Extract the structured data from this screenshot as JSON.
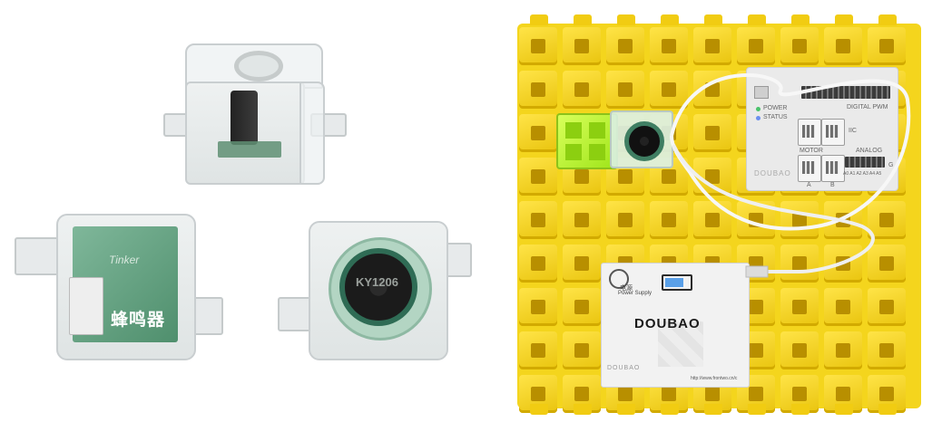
{
  "left_panel": {
    "front_module_label": "蜂鸣器",
    "pcb_brand_text": "Tinker",
    "buzzer_marking": "KY1206"
  },
  "right_panel": {
    "controller": {
      "power_led_label": "POWER",
      "status_led_label": "STATUS",
      "digital_label": "DIGITAL PWM",
      "iic_label": "IIC",
      "motor_label": "MOTOR",
      "motor_a": "A",
      "motor_b": "B",
      "analog_label": "ANALOG",
      "analog_pins": "A0 A1 A2 A3 A4 A5",
      "g_label": "G",
      "board_brand": "DOUBAO"
    },
    "power_box": {
      "cn_label": "电源",
      "power_supply_label": "Power Supply",
      "brand": "DOUBAO",
      "footer_brand": "DOUBAO",
      "url": "http://www.frontwo.cn/c"
    }
  },
  "colors": {
    "board_yellow": "#f4d51d",
    "accent_green": "#a8f021",
    "pcb_green": "#5b9b77",
    "cable_white": "#f7f7f7"
  }
}
